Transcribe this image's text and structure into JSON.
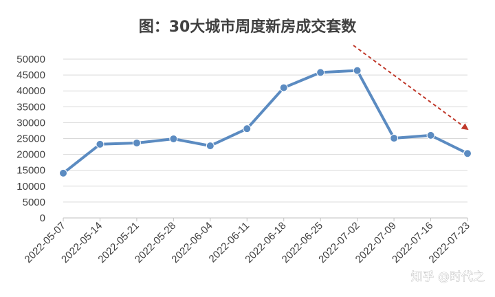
{
  "chart_data": {
    "type": "line",
    "title": "图：30大城市周度新房成交套数",
    "xlabel": "",
    "ylabel": "",
    "categories": [
      "2022-05-07",
      "2022-05-14",
      "2022-05-21",
      "2022-05-28",
      "2022-06-04",
      "2022-06-11",
      "2022-06-18",
      "2022-06-25",
      "2022-07-02",
      "2022-07-09",
      "2022-07-16",
      "2022-07-23"
    ],
    "series": [
      {
        "values": [
          14100,
          23200,
          23600,
          24900,
          22700,
          28100,
          41000,
          45800,
          46400,
          25100,
          26000,
          20300
        ]
      }
    ],
    "ylim": [
      0,
      50000
    ],
    "yticks": [
      0,
      5000,
      10000,
      15000,
      20000,
      25000,
      30000,
      35000,
      40000,
      45000,
      50000
    ],
    "grid": true,
    "colors": {
      "line": "#5b8bc1",
      "marker": "#5b8bc1",
      "arrow": "#c0392b",
      "grid": "#d9d9d9"
    },
    "annotations": [
      {
        "type": "dashed-arrow",
        "from_category": "2022-07-02",
        "to_category": "2022-07-23",
        "description": "downward trend"
      }
    ]
  },
  "watermark": {
    "text": "知乎 @时代之"
  }
}
